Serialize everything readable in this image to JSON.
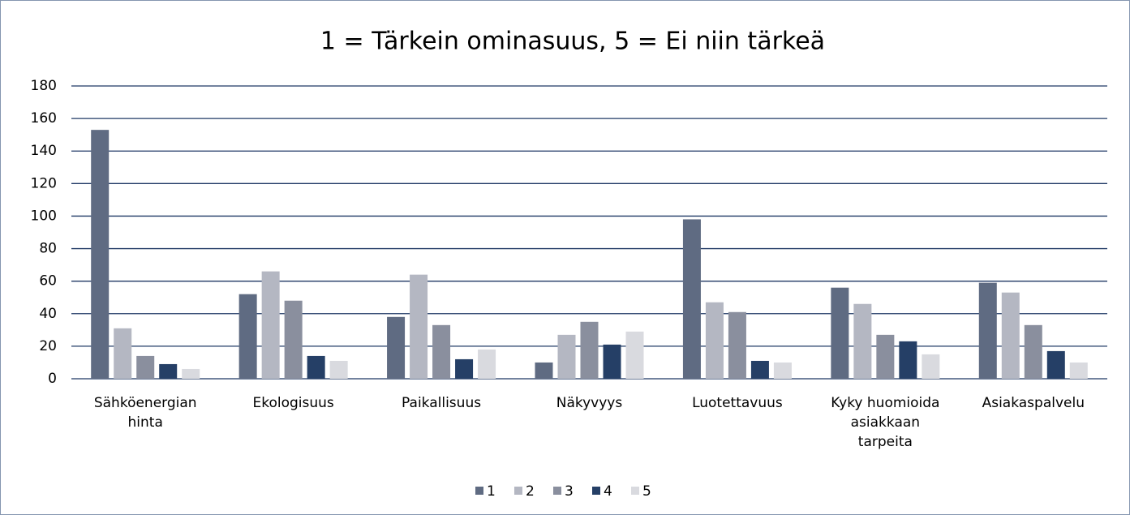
{
  "chart_data": {
    "type": "bar",
    "title": "1 = Tärkein ominasuus, 5 = Ei niin tärkeä",
    "categories": [
      "Sähköenergian hinta",
      "Ekologisuus",
      "Paikallisuus",
      "Näkyvyys",
      "Luotettavuus",
      "Kyky huomioida asiakkaan tarpeita",
      "Asiakaspalvelu"
    ],
    "series": [
      {
        "name": "1",
        "color": "#5f6b82",
        "values": [
          153,
          52,
          38,
          10,
          98,
          56,
          59
        ]
      },
      {
        "name": "2",
        "color": "#b4b7c2",
        "values": [
          31,
          66,
          64,
          27,
          47,
          46,
          53
        ]
      },
      {
        "name": "3",
        "color": "#8a8f9e",
        "values": [
          14,
          48,
          33,
          35,
          41,
          27,
          33
        ]
      },
      {
        "name": "4",
        "color": "#253f66",
        "values": [
          9,
          14,
          12,
          21,
          11,
          23,
          17
        ]
      },
      {
        "name": "5",
        "color": "#d9dadf",
        "values": [
          6,
          11,
          18,
          29,
          10,
          15,
          10
        ]
      }
    ],
    "ylim": [
      0,
      180
    ],
    "yticks": [
      0,
      20,
      40,
      60,
      80,
      100,
      120,
      140,
      160,
      180
    ],
    "grid": true,
    "legend": "bottom"
  }
}
